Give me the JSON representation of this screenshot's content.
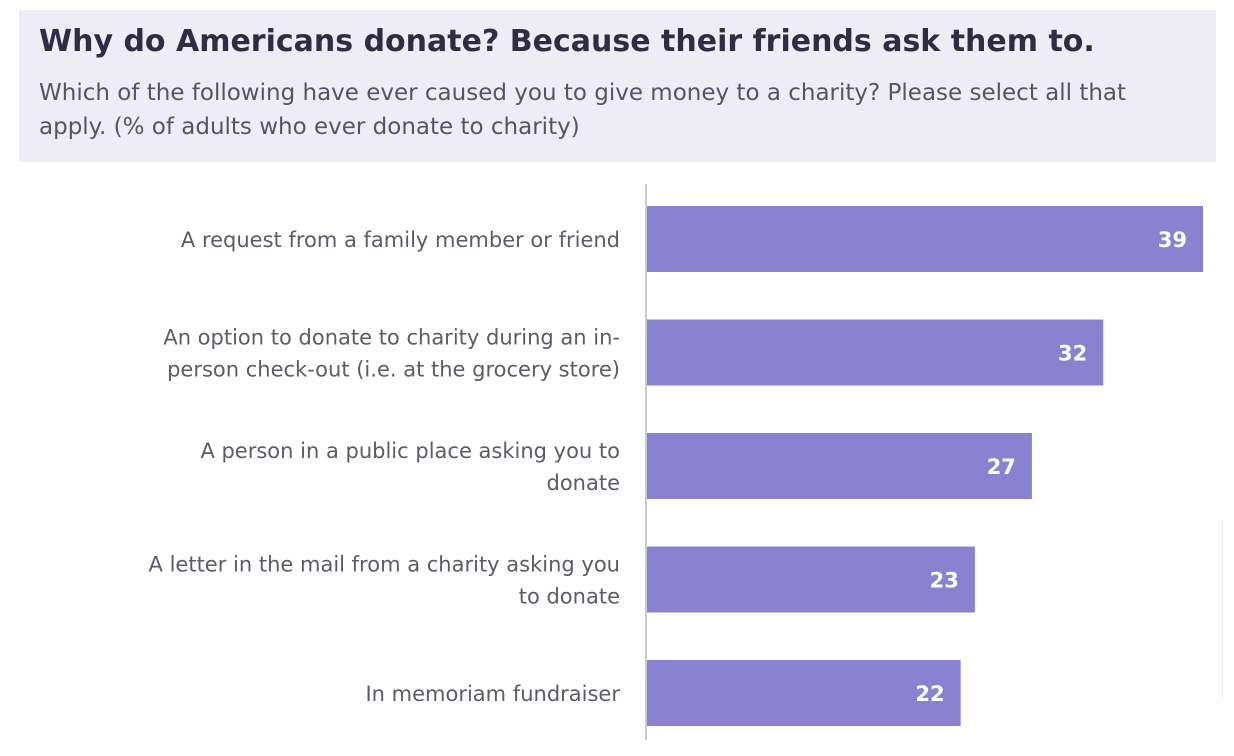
{
  "chart_data": {
    "type": "bar",
    "orientation": "horizontal",
    "title": "Why do Americans donate? Because their friends ask them to.",
    "subtitle": "Which of the following have ever caused you to give money to a charity? Please select all that apply. (% of adults who ever donate to charity)",
    "categories": [
      [
        "A request from a family member or friend"
      ],
      [
        "An option to donate to charity during an in-",
        "person check-out (i.e. at the grocery store)"
      ],
      [
        "A person in a public place asking you to",
        "donate"
      ],
      [
        "A letter in the mail from a charity asking you",
        "to donate"
      ],
      [
        "In memoriam fundraiser"
      ]
    ],
    "values": [
      39,
      32,
      27,
      23,
      22
    ],
    "xlim": [
      0,
      39
    ],
    "grid": false,
    "bar_color": "#8a82d1",
    "value_label_color": "#ffffff"
  }
}
